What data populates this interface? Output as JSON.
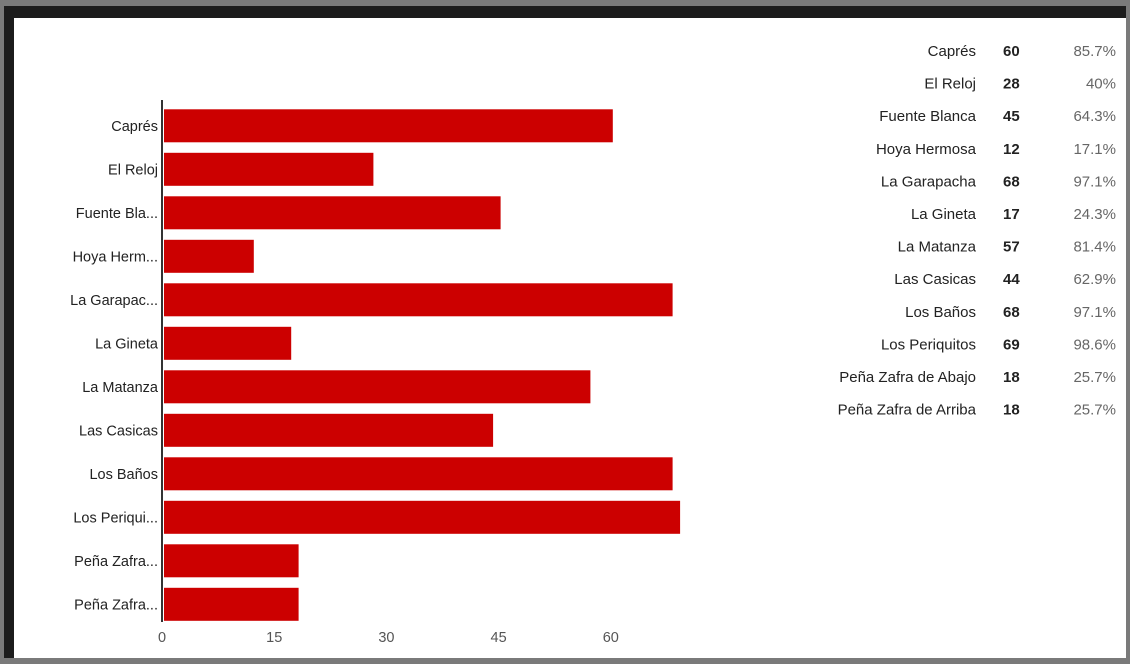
{
  "chart_data": {
    "type": "bar",
    "orientation": "horizontal",
    "categories": [
      "Caprés",
      "El Reloj",
      "Fuente Bla...",
      "Hoya Herm...",
      "La Garapac...",
      "La Gineta",
      "La Matanza",
      "Las Casicas",
      "Los Baños",
      "Los Periqui...",
      "Peña Zafra...",
      "Peña Zafra..."
    ],
    "values": [
      60,
      28,
      45,
      12,
      68,
      17,
      57,
      44,
      68,
      69,
      18,
      18
    ],
    "xticks": [
      0,
      15,
      30,
      45,
      60
    ],
    "xlim": [
      0,
      70
    ],
    "grid": false,
    "bar_color": "#cc0000",
    "legend_position": "right",
    "table": [
      {
        "name": "Caprés",
        "count": "60",
        "percent": "85.7%"
      },
      {
        "name": "El Reloj",
        "count": "28",
        "percent": "40%"
      },
      {
        "name": "Fuente Blanca",
        "count": "45",
        "percent": "64.3%"
      },
      {
        "name": "Hoya Hermosa",
        "count": "12",
        "percent": "17.1%"
      },
      {
        "name": "La Garapacha",
        "count": "68",
        "percent": "97.1%"
      },
      {
        "name": "La Gineta",
        "count": "17",
        "percent": "24.3%"
      },
      {
        "name": "La Matanza",
        "count": "57",
        "percent": "81.4%"
      },
      {
        "name": "Las Casicas",
        "count": "44",
        "percent": "62.9%"
      },
      {
        "name": "Los Baños",
        "count": "68",
        "percent": "97.1%"
      },
      {
        "name": "Los Periquitos",
        "count": "69",
        "percent": "98.6%"
      },
      {
        "name": "Peña Zafra de Abajo",
        "count": "18",
        "percent": "25.7%"
      },
      {
        "name": "Peña Zafra de Arriba",
        "count": "18",
        "percent": "25.7%"
      }
    ]
  }
}
